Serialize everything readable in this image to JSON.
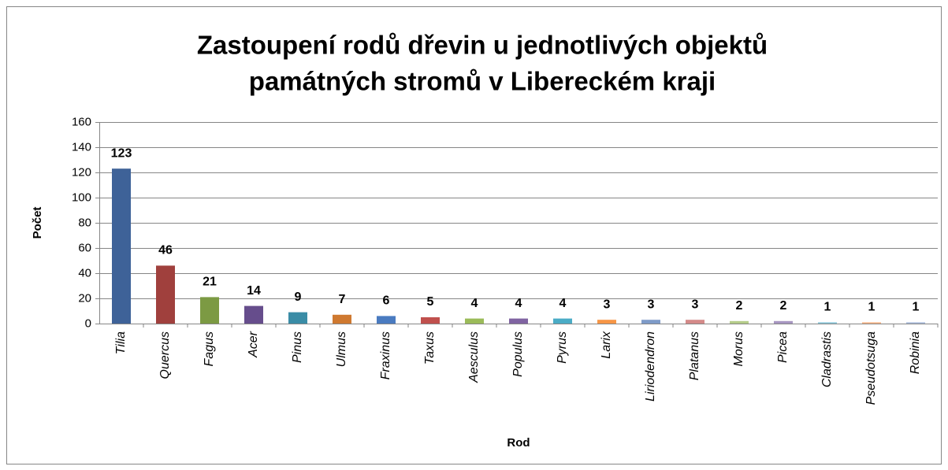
{
  "chart_data": {
    "type": "bar",
    "title": [
      "Zastoupení rodů dřevin u jednotlivých objektů",
      "památných stromů v Libereckém kraji"
    ],
    "x_label": "Rod",
    "y_label": "Počet",
    "categories": [
      "Tilia",
      "Quercus",
      "Fagus",
      "Acer",
      "Pinus",
      "Ulmus",
      "Fraxinus",
      "Taxus",
      "Aesculus",
      "Populus",
      "Pyrus",
      "Larix",
      "Liriodendron",
      "Platanus",
      "Morus",
      "Picea",
      "Cladrastis",
      "Pseudotsuga",
      "Robinia"
    ],
    "values": [
      123,
      46,
      21,
      14,
      9,
      7,
      6,
      5,
      4,
      4,
      4,
      3,
      3,
      3,
      2,
      2,
      1,
      1,
      1
    ],
    "colors": [
      "#3E6298",
      "#A0403D",
      "#7C9A43",
      "#664D8C",
      "#3A8CA6",
      "#CF7930",
      "#4A7BC0",
      "#C0504D",
      "#9BBB59",
      "#8064A2",
      "#4BACC6",
      "#F79646",
      "#7E9BC8",
      "#D48A89",
      "#B5CC89",
      "#A796C1",
      "#88C5D8",
      "#F8B384",
      "#A8BADA"
    ],
    "ylim": [
      0,
      160
    ],
    "yticks": [
      0,
      20,
      40,
      60,
      80,
      100,
      120,
      140,
      160
    ],
    "grid": true
  }
}
